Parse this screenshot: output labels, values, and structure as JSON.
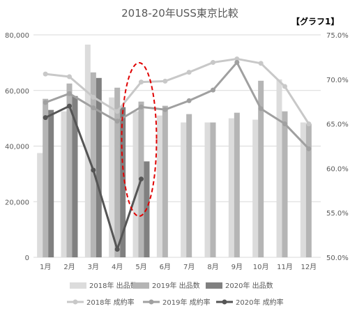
{
  "chart_data": {
    "type": "bar",
    "title": "2018-20年USS東京比較",
    "badge": "【グラフ1】",
    "categories": [
      "1月",
      "2月",
      "3月",
      "4月",
      "5月",
      "6月",
      "7月",
      "8月",
      "9月",
      "10月",
      "11月",
      "12月"
    ],
    "y_left": {
      "min": 0,
      "max": 80000,
      "ticks": [
        "0",
        "20,000",
        "40,000",
        "60,000",
        "80,000"
      ]
    },
    "y_right": {
      "min": 50.0,
      "max": 75.0,
      "ticks": [
        "50.0%",
        "55.0%",
        "60.0%",
        "65.0%",
        "70.0%",
        "75.0%"
      ]
    },
    "bar_series": [
      {
        "name": "2018年 出品数",
        "color": "#dcdcdc",
        "values": [
          37500,
          52500,
          76500,
          57500,
          52500,
          51000,
          48500,
          48500,
          50000,
          49500,
          64000,
          48500
        ]
      },
      {
        "name": "2019年 出品数",
        "color": "#b5b5b5",
        "values": [
          57000,
          62500,
          66500,
          61000,
          56000,
          54500,
          51500,
          48500,
          52000,
          63500,
          52500,
          48000
        ]
      },
      {
        "name": "2020年 出品数",
        "color": "#808080",
        "values": [
          53000,
          58000,
          64500,
          54000,
          34500,
          null,
          null,
          null,
          null,
          null,
          null,
          null
        ]
      }
    ],
    "line_series": [
      {
        "name": "2018年 成約率",
        "color": "#c8c8c8",
        "values": [
          70.6,
          70.3,
          68.0,
          66.4,
          69.7,
          69.8,
          70.8,
          71.9,
          72.3,
          71.8,
          69.2,
          65.0
        ]
      },
      {
        "name": "2019年 成約率",
        "color": "#a0a0a0",
        "values": [
          67.4,
          68.4,
          66.8,
          65.3,
          66.9,
          66.6,
          67.6,
          68.8,
          71.9,
          66.7,
          65.0,
          62.2
        ]
      },
      {
        "name": "2020年 成約率",
        "color": "#555555",
        "values": [
          65.7,
          67.0,
          59.8,
          50.9,
          58.8,
          null,
          null,
          null,
          null,
          null,
          null,
          null
        ]
      }
    ],
    "annotation": {
      "shape": "dashed-ellipse",
      "color": "#e00000",
      "category": "5月"
    },
    "legend": "bottom",
    "grid": true
  }
}
